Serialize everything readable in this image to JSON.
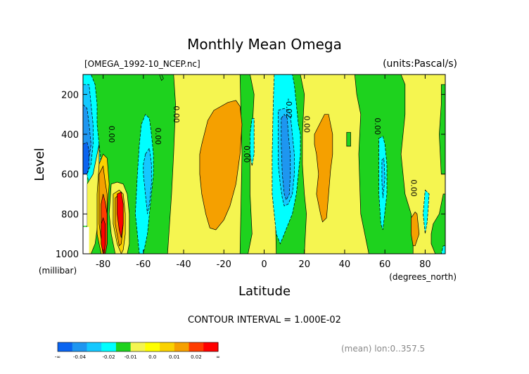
{
  "chart_data": {
    "type": "heatmap",
    "title": "Monthly Mean Omega",
    "file_label": "[OMEGA_1992-10_NCEP.nc]",
    "units_label": "(units:Pascal/s)",
    "xlabel": "Latitude",
    "x_units": "(degrees_north)",
    "ylabel": "Level",
    "y_units": "(millibar)",
    "xlim": [
      -90,
      90
    ],
    "ylim": [
      1000,
      100
    ],
    "x_ticks": [
      -80,
      -60,
      -40,
      -20,
      0,
      20,
      40,
      60,
      80
    ],
    "y_ticks": [
      1000,
      800,
      600,
      400,
      200
    ],
    "contour_interval_text": "CONTOUR INTERVAL = 1.000E-02",
    "mean_text": "(mean) lon:0..357.5",
    "colorbar": {
      "labels": [
        "-∞",
        "-0.04",
        "-0.02",
        "-0.01",
        "0.0",
        "0.01",
        "0.02",
        "∞"
      ],
      "colors": [
        "#0a64f0",
        "#1e96f0",
        "#14c8ff",
        "#00ffff",
        "#1ed21e",
        "#f5f550",
        "#ffff00",
        "#fad200",
        "#f5a000",
        "#ff3c00",
        "#ff0000"
      ]
    },
    "contour_labels": [
      {
        "text": "0.00",
        "lat": -77,
        "lev": 400
      },
      {
        "text": "0.00",
        "lat": -54,
        "lev": 410
      },
      {
        "text": "0.00",
        "lat": -45,
        "lev": 300
      },
      {
        "text": "0.00",
        "lat": -10,
        "lev": 500
      },
      {
        "text": "-0.02",
        "lat": 11,
        "lev": 270
      },
      {
        "text": "0.00",
        "lat": 20,
        "lev": 350
      },
      {
        "text": "0.00",
        "lat": 55,
        "lev": 360
      },
      {
        "text": "0.00",
        "lat": 73,
        "lev": 670
      }
    ],
    "regions": [
      {
        "color": "#1ed21e",
        "lat": [
          -90,
          -70,
          -66,
          -63,
          -58,
          -50,
          -45,
          -44,
          -45,
          -46,
          -48,
          -90
        ],
        "lev": [
          100,
          100,
          100,
          100,
          100,
          100,
          100,
          250,
          500,
          700,
          1000,
          1000
        ]
      },
      {
        "color": "#1ed21e",
        "lat": [
          -12,
          -7,
          -5,
          -6,
          -7,
          -7,
          -6,
          -8,
          -12,
          -11
        ],
        "lev": [
          100,
          100,
          200,
          400,
          500,
          700,
          900,
          1000,
          1000,
          500
        ]
      },
      {
        "color": "#1ed21e",
        "lat": [
          6,
          18,
          20,
          19,
          19,
          20,
          21,
          20,
          6,
          5
        ],
        "lev": [
          100,
          100,
          200,
          400,
          550,
          700,
          800,
          1000,
          1000,
          500
        ]
      },
      {
        "color": "#1ed21e",
        "lat": [
          45,
          52,
          56,
          62,
          65,
          68,
          70,
          70,
          68,
          70,
          73,
          74,
          74,
          60,
          52,
          48,
          47,
          48,
          46
        ],
        "lev": [
          100,
          100,
          100,
          100,
          100,
          100,
          150,
          300,
          500,
          700,
          800,
          900,
          1000,
          1000,
          1000,
          800,
          500,
          300,
          200
        ]
      },
      {
        "color": "#1ed21e",
        "lat": [
          88,
          90,
          90,
          88,
          87,
          88
        ],
        "lev": [
          150,
          150,
          600,
          600,
          400,
          250
        ]
      },
      {
        "color": "#1ed21e",
        "lat": [
          84,
          87,
          89,
          90,
          90,
          85,
          83,
          83
        ],
        "lev": [
          850,
          800,
          700,
          700,
          1000,
          1000,
          950,
          900
        ]
      },
      {
        "color": "#1ed21e",
        "lat": [
          -52,
          -51,
          -50,
          -51
        ],
        "lev": [
          100,
          100,
          120,
          130
        ]
      },
      {
        "color": "#1ed21e",
        "lat": [
          41,
          43,
          43,
          41
        ],
        "lev": [
          390,
          390,
          460,
          460
        ]
      },
      {
        "color": "#f5a000",
        "lat": [
          -31,
          -28,
          -25,
          -18,
          -14,
          -12,
          -11,
          -12,
          -14,
          -17,
          -20,
          -24,
          -27,
          -29,
          -31,
          -32,
          -32
        ],
        "lev": [
          450,
          330,
          280,
          240,
          230,
          260,
          350,
          500,
          650,
          760,
          830,
          880,
          870,
          800,
          700,
          600,
          500
        ]
      },
      {
        "color": "#f5a000",
        "lat": [
          25,
          28,
          30,
          32,
          34,
          34,
          33,
          32,
          31,
          29,
          28,
          26,
          27,
          26,
          25,
          25,
          25
        ],
        "lev": [
          400,
          340,
          300,
          300,
          400,
          500,
          580,
          700,
          820,
          840,
          800,
          700,
          600,
          500,
          450,
          450,
          400
        ]
      },
      {
        "color": "#f5a000",
        "lat": [
          73,
          75,
          76,
          77,
          75,
          74,
          73
        ],
        "lev": [
          820,
          790,
          800,
          900,
          960,
          960,
          900
        ]
      },
      {
        "color": "#00ffff",
        "lat": [
          5,
          8,
          11,
          14,
          15,
          16,
          17,
          18,
          18,
          17,
          16,
          14,
          12,
          10,
          8,
          6,
          5,
          4,
          4,
          4.5
        ],
        "lev": [
          100,
          100,
          100,
          100,
          150,
          250,
          350,
          400,
          500,
          600,
          700,
          800,
          850,
          900,
          950,
          900,
          800,
          700,
          500,
          250
        ]
      },
      {
        "color": "#14c8ff",
        "lat": [
          7,
          10,
          12,
          13,
          14,
          15,
          15,
          14,
          12,
          10,
          9,
          8,
          7,
          7
        ],
        "lev": [
          280,
          270,
          280,
          300,
          400,
          500,
          600,
          700,
          750,
          760,
          720,
          650,
          550,
          400
        ]
      },
      {
        "color": "#1e96f0",
        "lat": [
          8.5,
          10,
          11.5,
          12,
          13,
          13,
          12.5,
          11,
          10,
          9,
          8.5
        ],
        "lev": [
          320,
          300,
          320,
          400,
          500,
          600,
          700,
          730,
          700,
          600,
          450
        ]
      },
      {
        "color": "#00ffff",
        "lat": [
          -6,
          -5,
          -5,
          -6,
          -7,
          -7
        ],
        "lev": [
          320,
          320,
          500,
          560,
          500,
          400
        ]
      },
      {
        "color": "#00ffff",
        "lat": [
          -61,
          -59,
          -57,
          -56,
          -55,
          -55,
          -56,
          -57,
          -58,
          -60,
          -62,
          -63,
          -64,
          -63,
          -62
        ],
        "lev": [
          350,
          300,
          320,
          400,
          500,
          600,
          700,
          800,
          900,
          1000,
          1000,
          900,
          800,
          600,
          450
        ]
      },
      {
        "color": "#14c8ff",
        "lat": [
          -59,
          -57,
          -56,
          -56,
          -57,
          -58,
          -59,
          -60,
          -60
        ],
        "lev": [
          500,
          470,
          550,
          650,
          750,
          800,
          700,
          600,
          550
        ]
      },
      {
        "color": "#00ffff",
        "lat": [
          -90,
          -86,
          -84,
          -83,
          -83,
          -82,
          -81,
          -82,
          -84,
          -86,
          -88,
          -90
        ],
        "lev": [
          100,
          100,
          150,
          250,
          350,
          450,
          550,
          650,
          700,
          700,
          600,
          600
        ]
      },
      {
        "color": "#14c8ff",
        "lat": [
          -90,
          -87,
          -86,
          -85,
          -85,
          -86,
          -88,
          -90
        ],
        "lev": [
          150,
          150,
          250,
          350,
          450,
          550,
          600,
          600
        ]
      },
      {
        "color": "#1e96f0",
        "lat": [
          -90,
          -88,
          -87,
          -86,
          -87,
          -88,
          -90
        ],
        "lev": [
          250,
          270,
          350,
          450,
          520,
          600,
          600
        ]
      },
      {
        "color": "#0a64f0",
        "lat": [
          -90,
          -88,
          -87,
          -87,
          -88,
          -90
        ],
        "lev": [
          450,
          440,
          480,
          560,
          600,
          600
        ]
      },
      {
        "color": "#00ffff",
        "lat": [
          57,
          59,
          60,
          61,
          61,
          59,
          58,
          57
        ],
        "lev": [
          420,
          410,
          450,
          550,
          700,
          880,
          850,
          700
        ]
      },
      {
        "color": "#14c8ff",
        "lat": [
          58.5,
          59.5,
          60,
          59,
          58.5
        ],
        "lev": [
          530,
          520,
          620,
          720,
          640
        ]
      },
      {
        "color": "#00ffff",
        "lat": [
          80,
          82,
          81,
          80,
          79
        ],
        "lev": [
          680,
          700,
          840,
          900,
          800
        ]
      },
      {
        "color": "#00ffff",
        "lat": [
          89,
          90,
          90,
          88
        ],
        "lev": [
          960,
          960,
          1000,
          1000
        ]
      },
      {
        "color": "#f5f550",
        "lat": [
          -88,
          -85,
          -83,
          -82,
          -82,
          -84,
          -86,
          -88
        ],
        "lev": [
          650,
          600,
          500,
          450,
          800,
          950,
          1000,
          1000
        ]
      },
      {
        "color": "#fad200",
        "lat": [
          -83,
          -82,
          -80,
          -78,
          -77,
          -78,
          -78,
          -79,
          -81,
          -83
        ],
        "lev": [
          700,
          550,
          500,
          520,
          650,
          800,
          950,
          1000,
          1000,
          900
        ]
      },
      {
        "color": "#f5a000",
        "lat": [
          -82,
          -80,
          -79,
          -78,
          -78,
          -79,
          -80,
          -82
        ],
        "lev": [
          600,
          560,
          640,
          700,
          850,
          1000,
          1000,
          850
        ]
      },
      {
        "color": "#ff3c00",
        "lat": [
          -81,
          -80,
          -79,
          -78,
          -78,
          -79,
          -80,
          -81
        ],
        "lev": [
          750,
          700,
          740,
          800,
          950,
          1000,
          1000,
          900
        ]
      },
      {
        "color": "#ff0000",
        "lat": [
          -81,
          -80,
          -79,
          -79,
          -79.5,
          -80,
          -81
        ],
        "lev": [
          850,
          820,
          850,
          950,
          1000,
          1000,
          950
        ]
      },
      {
        "color": "#f5f550",
        "lat": [
          -76,
          -73,
          -70,
          -68,
          -67,
          -67,
          -68,
          -70,
          -72,
          -74,
          -76,
          -77
        ],
        "lev": [
          650,
          640,
          650,
          700,
          800,
          950,
          1000,
          1000,
          1000,
          1000,
          900,
          800
        ]
      },
      {
        "color": "#fad200",
        "lat": [
          -75,
          -72,
          -70,
          -69,
          -69,
          -70,
          -71,
          -73,
          -75
        ],
        "lev": [
          700,
          680,
          700,
          800,
          900,
          980,
          1000,
          950,
          850
        ]
      },
      {
        "color": "#f5a000",
        "lat": [
          -74,
          -72,
          -70,
          -70,
          -71,
          -72,
          -74
        ],
        "lev": [
          720,
          700,
          760,
          850,
          950,
          960,
          850
        ]
      },
      {
        "color": "#ff0000",
        "lat": [
          -73,
          -71,
          -70,
          -70,
          -71,
          -72,
          -73
        ],
        "lev": [
          700,
          690,
          750,
          850,
          920,
          880,
          800
        ]
      },
      {
        "color": "#ffffff",
        "lat": [
          -90,
          -88,
          -88,
          -90
        ],
        "lev": [
          600,
          600,
          860,
          860
        ]
      },
      {
        "color": "#ffffff",
        "lat": [
          -90,
          -87,
          -87,
          -90
        ],
        "lev": [
          865,
          865,
          1000,
          1000
        ]
      }
    ]
  }
}
